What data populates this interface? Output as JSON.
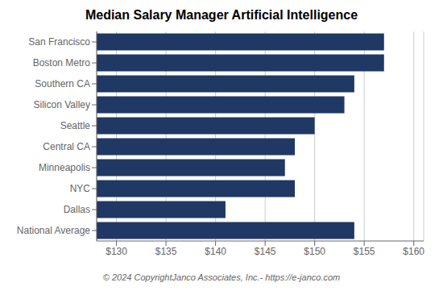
{
  "chart_data": {
    "type": "bar",
    "title": "Median Salary Manager Artificial Intelligence",
    "orientation": "horizontal",
    "categories": [
      "National Average",
      "Dallas",
      "NYC",
      "Minneapolis",
      "Central CA",
      "Seattle",
      "Silicon Valley",
      "Southern CA",
      "Boston Metro",
      "San Francisco"
    ],
    "values": [
      154,
      141,
      148,
      147,
      148,
      150,
      153,
      154,
      157,
      157
    ],
    "color": "#1F3864",
    "xlim": [
      128,
      161
    ],
    "xticks": [
      {
        "value": 130,
        "label": "$130"
      },
      {
        "value": 135,
        "label": "$135"
      },
      {
        "value": 140,
        "label": "$140"
      },
      {
        "value": 145,
        "label": "$145"
      },
      {
        "value": 150,
        "label": "$150"
      },
      {
        "value": 155,
        "label": "$155"
      },
      {
        "value": 160,
        "label": "$160"
      }
    ],
    "grid": true,
    "annotations": [
      "© 2024 CopyrightJanco Associates, Inc.- https://e-janco.com"
    ]
  }
}
